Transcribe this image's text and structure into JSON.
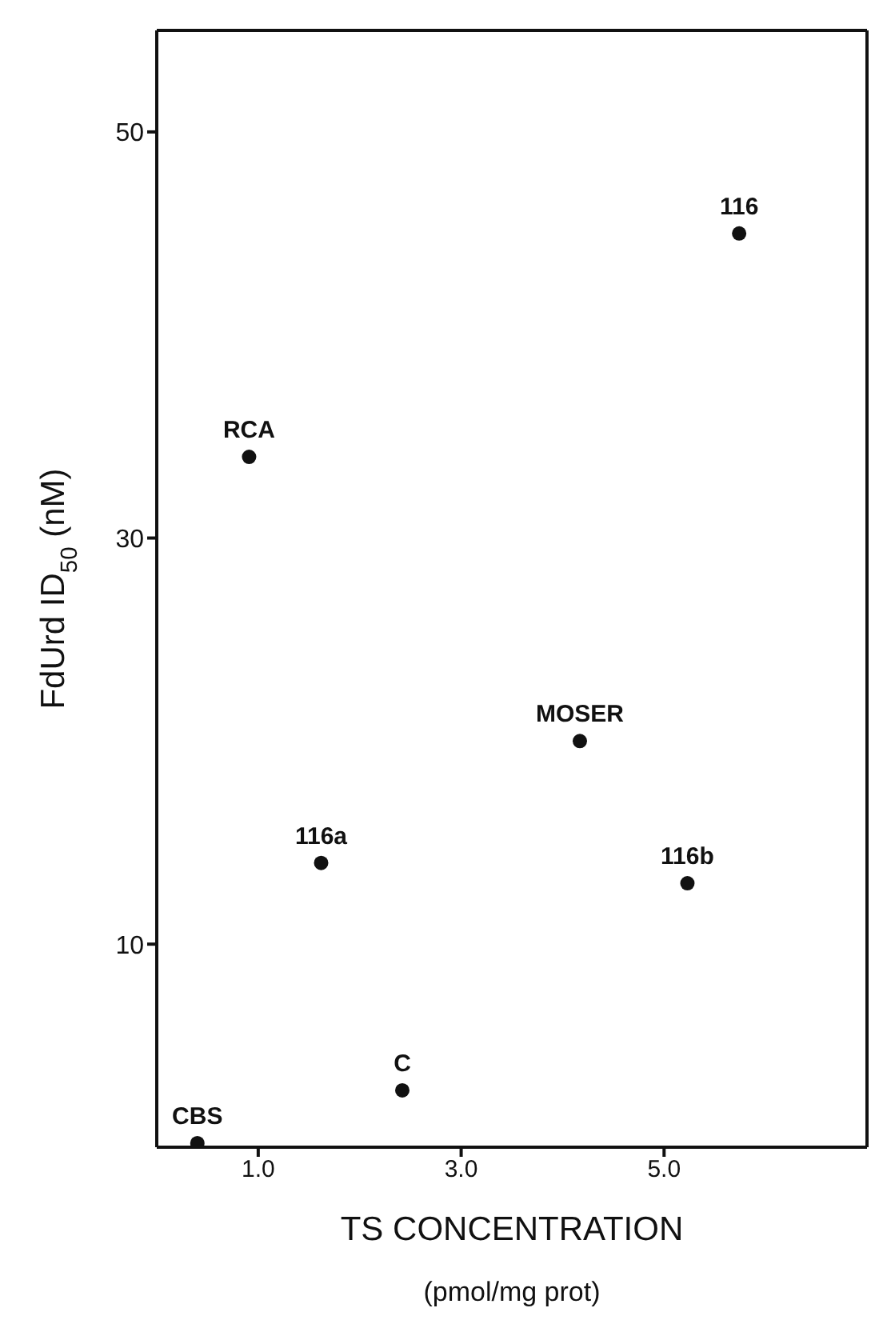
{
  "chart_data": {
    "type": "scatter",
    "xlabel": "TS CONCENTRATION\n(pmol/mg prot)",
    "ylabel": "FdUrd ID$_{50}$ (nM)",
    "x": [
      5.74,
      0.91,
      4.17,
      1.62,
      5.23,
      2.42,
      0.4
    ],
    "series": [
      {
        "color": "#111111",
        "values": [
          45,
          34,
          20,
          14,
          13,
          2.8,
          0.2
        ]
      }
    ],
    "xlim": [
      0,
      7
    ],
    "ylim": [
      0,
      55
    ],
    "xticks": [
      {
        "value": 1,
        "label": "1.0"
      },
      {
        "value": 3,
        "label": "3.0"
      },
      {
        "value": 5,
        "label": "5.0"
      }
    ],
    "yticks": [
      10,
      30,
      50
    ],
    "marker": "circle",
    "grid": false,
    "legend": false,
    "annotations": [
      {
        "text": "116",
        "x": 5.74,
        "y": 45
      },
      {
        "text": "RCA",
        "x": 0.91,
        "y": 34
      },
      {
        "text": "MOSER",
        "x": 4.17,
        "y": 20
      },
      {
        "text": "116a",
        "x": 1.62,
        "y": 14
      },
      {
        "text": "116b",
        "x": 5.23,
        "y": 13
      },
      {
        "text": "C",
        "x": 2.42,
        "y": 2.8
      },
      {
        "text": "CBS",
        "x": 0.4,
        "y": 0.2
      }
    ]
  }
}
